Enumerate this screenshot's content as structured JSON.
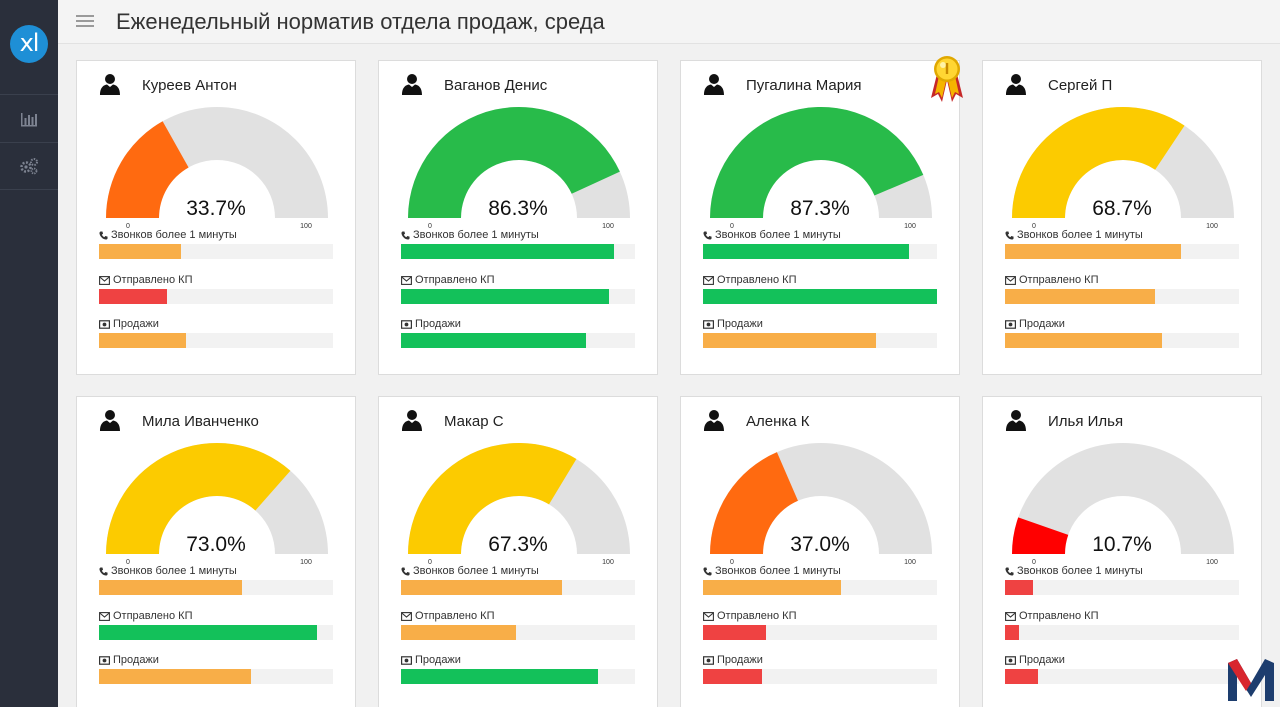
{
  "app": {
    "logo_text": "xl"
  },
  "header": {
    "title": "Еженедельный норматив отдела продаж, среда"
  },
  "sidebar": {
    "items": [
      {
        "icon": "bar-chart-icon"
      },
      {
        "icon": "gears-icon"
      }
    ]
  },
  "colors": {
    "green": "#1fbf4f",
    "orange_fill": "#f8ae48",
    "red_fill": "#ef4242",
    "gauge_bg": "#e1e1e1"
  },
  "stat_labels": {
    "calls": "Звонков более 1 минуты",
    "kp": "Отправлено КП",
    "sales": "Продажи"
  },
  "scale": {
    "min": "0",
    "max": "100"
  },
  "cards": [
    {
      "name": "Куреев Антон",
      "percent": 33.7,
      "percent_text": "33.7%",
      "gauge_color": "#ff6a10",
      "medal": false,
      "calls": {
        "value": 0.35,
        "color": "#f8ae48"
      },
      "kp": {
        "value": 0.29,
        "color": "#ef4242"
      },
      "sales": {
        "value": 0.37,
        "color": "#f8ae48"
      }
    },
    {
      "name": "Ваганов Денис",
      "percent": 86.3,
      "percent_text": "86.3%",
      "gauge_color": "#28bb4a",
      "medal": false,
      "calls": {
        "value": 0.91,
        "color": "#13c15a"
      },
      "kp": {
        "value": 0.89,
        "color": "#13c15a"
      },
      "sales": {
        "value": 0.79,
        "color": "#13c15a"
      }
    },
    {
      "name": "Пугалина Мария",
      "percent": 87.3,
      "percent_text": "87.3%",
      "gauge_color": "#28bb4a",
      "medal": true,
      "calls": {
        "value": 0.88,
        "color": "#13c15a"
      },
      "kp": {
        "value": 1.0,
        "color": "#13c15a"
      },
      "sales": {
        "value": 0.74,
        "color": "#f8ae48"
      }
    },
    {
      "name": "Сергей П",
      "percent": 68.7,
      "percent_text": "68.7%",
      "gauge_color": "#fccb00",
      "medal": false,
      "calls": {
        "value": 0.75,
        "color": "#f8ae48"
      },
      "kp": {
        "value": 0.64,
        "color": "#f8ae48"
      },
      "sales": {
        "value": 0.67,
        "color": "#f8ae48"
      }
    },
    {
      "name": "Мила Иванченко",
      "percent": 73.0,
      "percent_text": "73.0%",
      "gauge_color": "#fccb00",
      "medal": false,
      "calls": {
        "value": 0.61,
        "color": "#f8ae48"
      },
      "kp": {
        "value": 0.93,
        "color": "#13c15a"
      },
      "sales": {
        "value": 0.65,
        "color": "#f8ae48"
      }
    },
    {
      "name": "Макар С",
      "percent": 67.3,
      "percent_text": "67.3%",
      "gauge_color": "#fccb00",
      "medal": false,
      "calls": {
        "value": 0.69,
        "color": "#f8ae48"
      },
      "kp": {
        "value": 0.49,
        "color": "#f8ae48"
      },
      "sales": {
        "value": 0.84,
        "color": "#13c15a"
      }
    },
    {
      "name": "Аленка К",
      "percent": 37.0,
      "percent_text": "37.0%",
      "gauge_color": "#ff6a10",
      "medal": false,
      "calls": {
        "value": 0.59,
        "color": "#f8ae48"
      },
      "kp": {
        "value": 0.27,
        "color": "#ef4242"
      },
      "sales": {
        "value": 0.25,
        "color": "#ef4242"
      }
    },
    {
      "name": "Илья Илья",
      "percent": 10.7,
      "percent_text": "10.7%",
      "gauge_color": "#ff0000",
      "medal": false,
      "calls": {
        "value": 0.12,
        "color": "#ef4242"
      },
      "kp": {
        "value": 0.06,
        "color": "#ef4242"
      },
      "sales": {
        "value": 0.14,
        "color": "#ef4242"
      }
    }
  ]
}
